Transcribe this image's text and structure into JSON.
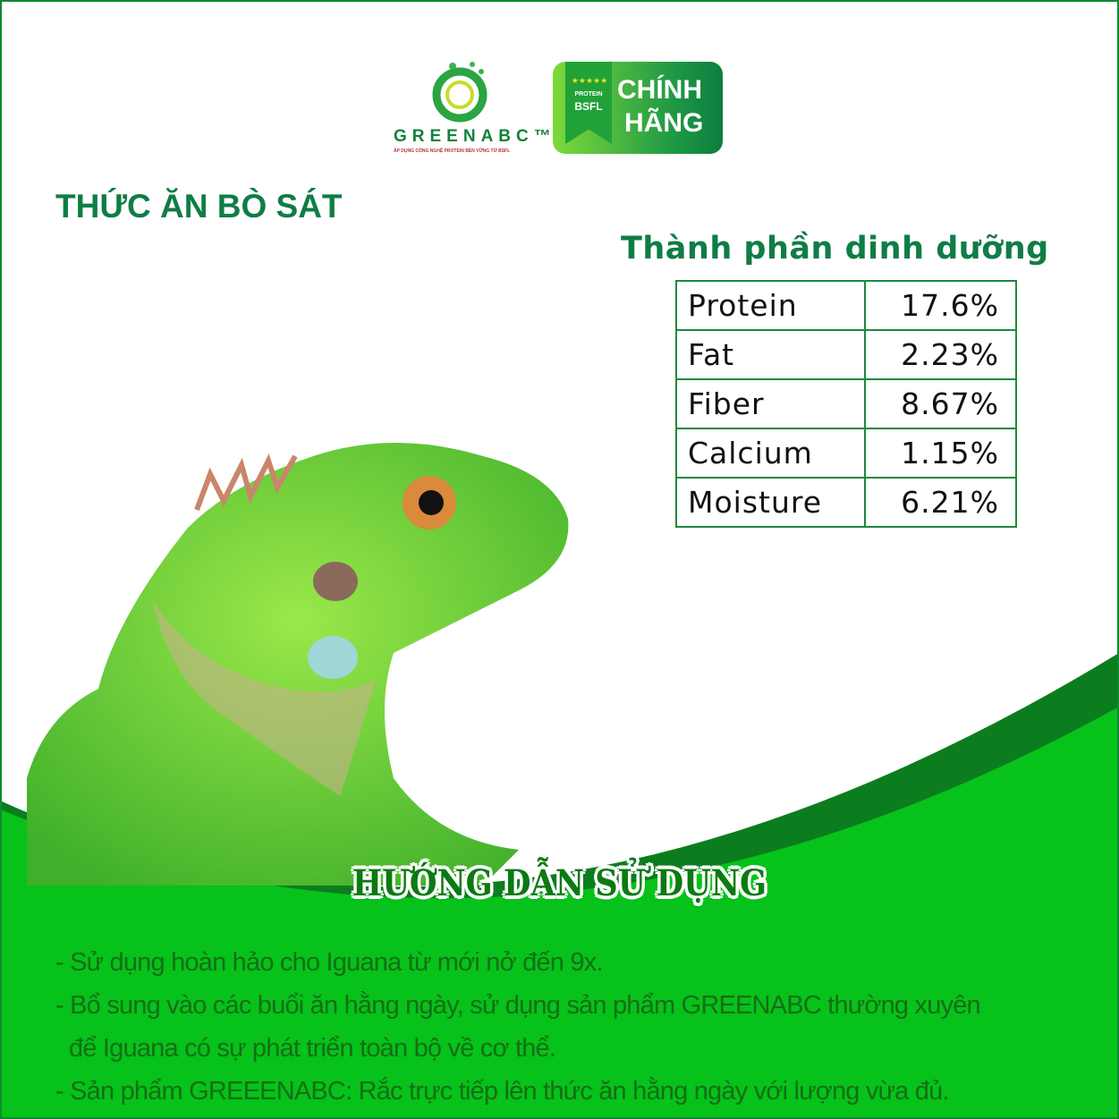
{
  "brand": {
    "name": "GREENABC™",
    "tagline": "ÁP DỤNG CÔNG NGHỆ PROTEIN BỀN VỮNG TỪ BSFL",
    "badge_ribbon_top": "PROTEIN",
    "badge_ribbon_bottom": "BSFL",
    "badge_line1": "CHÍNH",
    "badge_line2": "HÃNG"
  },
  "title": "THỨC ĂN BÒ SÁT",
  "nutrition": {
    "title": "Thành phần dinh dưỡng",
    "rows": [
      {
        "name": "Protein",
        "value": "17.6%"
      },
      {
        "name": "Fat",
        "value": "2.23%"
      },
      {
        "name": "Fiber",
        "value": "8.67%"
      },
      {
        "name": "Calcium",
        "value": "1.15%"
      },
      {
        "name": "Moisture",
        "value": "6.21%"
      }
    ]
  },
  "instructions": {
    "title": "HƯỚNG DẪN SỬ DỤNG",
    "lines": [
      "- Sử dụng hoàn hảo cho Iguana từ mới nở đến 9x.",
      "- Bổ sung vào các buổi ăn hằng ngày, sử dụng sản phẩm GREENABC thường xuyên",
      "  để Iguana có sự phát triển toàn bộ về cơ thể.",
      "- Sản phẩm GREEENABC: Rắc trực tiếp lên thức ăn hằng ngày với lượng vừa đủ."
    ]
  },
  "colors": {
    "dark_green": "#0c7d1f",
    "bright_green": "#06c21a",
    "text_green": "#0f7d45"
  }
}
